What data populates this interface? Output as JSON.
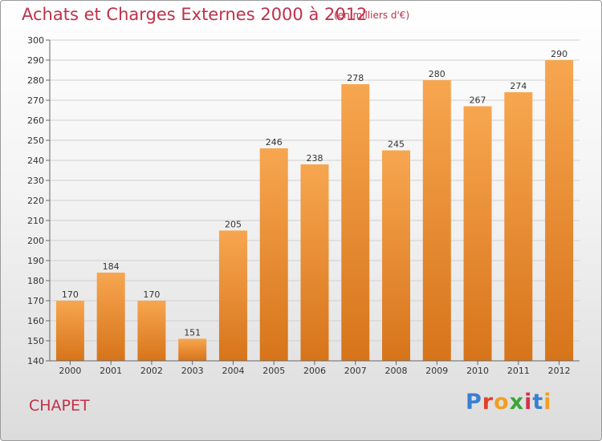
{
  "header": {
    "title": "Achats et Charges Externes 2000 à 2012",
    "subtitle": "(en milliers d'€)"
  },
  "footer": {
    "commune": "CHAPET",
    "logo": "Proxiti"
  },
  "colors": {
    "title": "#c0304a",
    "bar_light": "#f7a650",
    "bar_dark": "#d7741a",
    "logo_letters": [
      "#3b7fd0",
      "#e2412a",
      "#f0a020",
      "#3aa636",
      "#d4314a",
      "#3b7fd0",
      "#f0a020"
    ]
  },
  "chart_data": {
    "type": "bar",
    "categories": [
      "2000",
      "2001",
      "2002",
      "2003",
      "2004",
      "2005",
      "2006",
      "2007",
      "2008",
      "2009",
      "2010",
      "2011",
      "2012"
    ],
    "values": [
      170,
      184,
      170,
      151,
      205,
      246,
      238,
      278,
      245,
      280,
      267,
      274,
      290
    ],
    "title": "Achats et Charges Externes 2000 à 2012",
    "ylim": [
      140,
      300
    ],
    "yticks": [
      140,
      150,
      160,
      170,
      180,
      190,
      200,
      210,
      220,
      230,
      240,
      250,
      260,
      270,
      280,
      290,
      300
    ],
    "grid": true
  }
}
